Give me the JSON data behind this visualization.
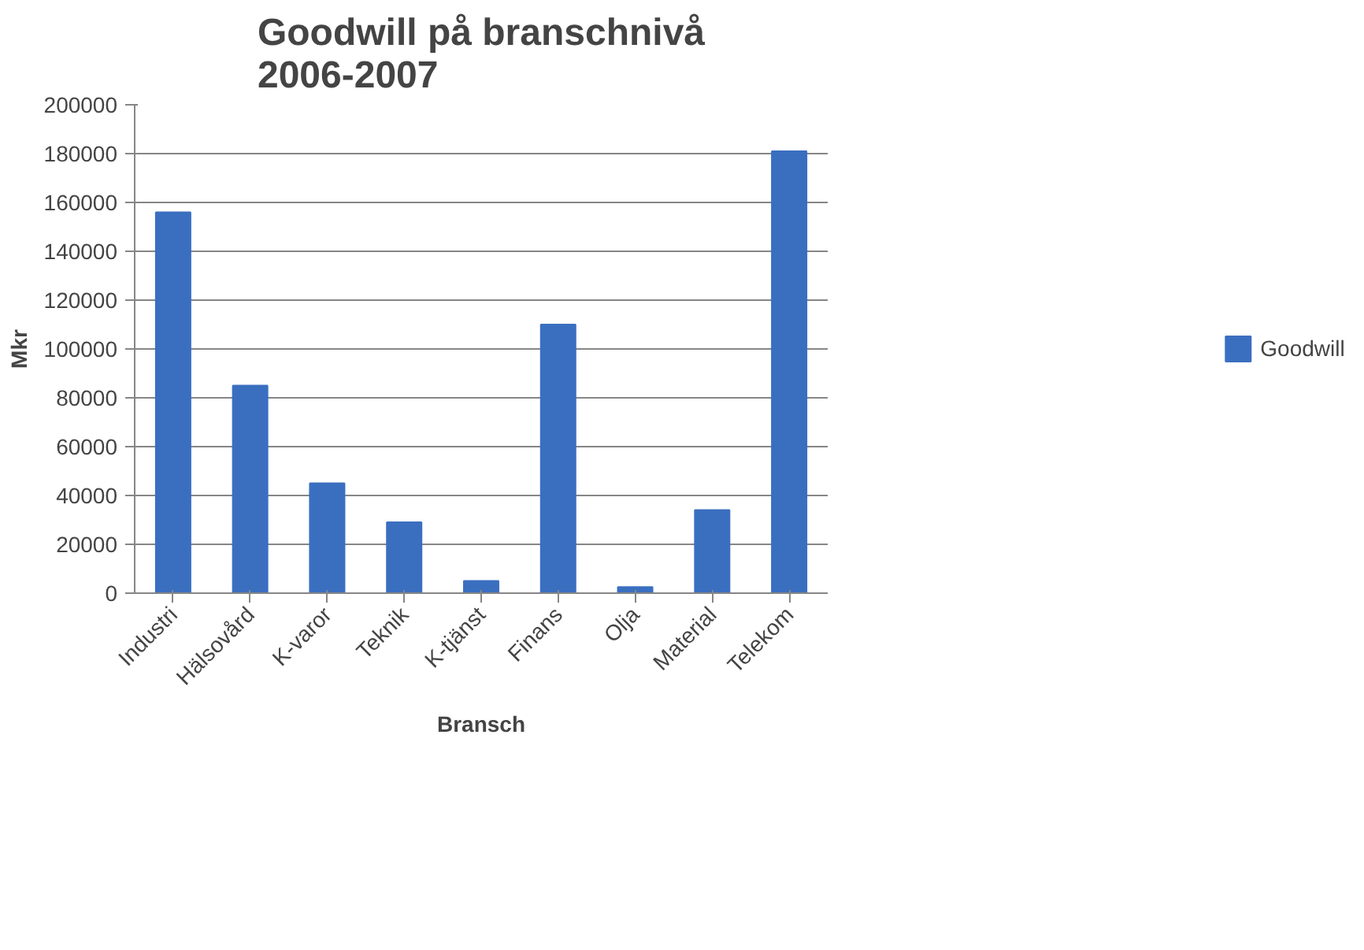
{
  "chart_data": {
    "type": "bar",
    "title": "Goodwill på branschnivå\n2006-2007",
    "xlabel": "Bransch",
    "ylabel": "Mkr",
    "categories": [
      "Industri",
      "Hälsovård",
      "K-varor",
      "Teknik",
      "K-tjänst",
      "Finans",
      "Olja",
      "Material",
      "Telekom"
    ],
    "series": [
      {
        "name": "Goodwill",
        "color": "#3a6fc0",
        "values": [
          156000,
          85000,
          45000,
          29000,
          5000,
          110000,
          2500,
          34000,
          181000
        ]
      }
    ],
    "ylim": [
      0,
      200000
    ],
    "yticks": [
      0,
      20000,
      40000,
      60000,
      80000,
      100000,
      120000,
      140000,
      160000,
      180000,
      200000
    ],
    "grid": "y",
    "legend": "right"
  }
}
